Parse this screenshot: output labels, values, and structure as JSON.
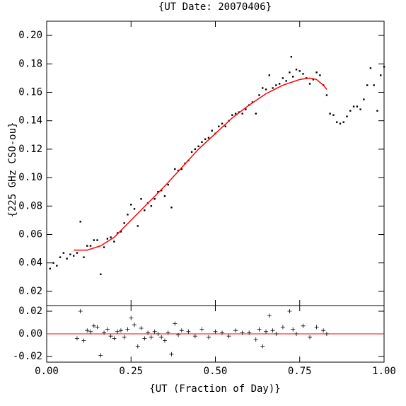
{
  "chart_data": [
    {
      "type": "scatter",
      "title": "{UT Date: 20070406}",
      "y_label": "{225 GHz CSO-ou}",
      "xlim": [
        0,
        1
      ],
      "ylim": [
        0.01,
        0.21
      ],
      "yticks": [
        0.02,
        0.04,
        0.06,
        0.08,
        {
          "value": 0.1,
          "label": "0.10"
        },
        0.12,
        0.14,
        0.16,
        0.18,
        {
          "value": 0.2,
          "label": "0.20"
        }
      ],
      "series": [
        {
          "marker": "dot",
          "color": "#000000",
          "x": [
            0.01,
            0.02,
            0.03,
            0.04,
            0.05,
            0.06,
            0.07,
            0.08,
            0.09,
            0.1,
            0.11,
            0.12,
            0.13,
            0.14,
            0.15,
            0.16,
            0.17,
            0.18,
            0.19,
            0.2,
            0.21,
            0.22,
            0.23,
            0.24,
            0.25,
            0.26,
            0.27,
            0.28,
            0.29,
            0.3,
            0.31,
            0.32,
            0.33,
            0.34,
            0.35,
            0.36,
            0.37,
            0.38,
            0.39,
            0.4,
            0.41,
            0.42,
            0.43,
            0.44,
            0.45,
            0.46,
            0.47,
            0.48,
            0.49,
            0.5,
            0.51,
            0.52,
            0.53,
            0.54,
            0.55,
            0.56,
            0.57,
            0.58,
            0.59,
            0.6,
            0.61,
            0.62,
            0.63,
            0.64,
            0.65,
            0.66,
            0.67,
            0.68,
            0.69,
            0.7,
            0.71,
            0.72,
            0.725,
            0.73,
            0.74,
            0.75,
            0.76,
            0.77,
            0.78,
            0.79,
            0.8,
            0.81,
            0.82,
            0.83,
            0.84,
            0.85,
            0.86,
            0.87,
            0.88,
            0.89,
            0.9,
            0.91,
            0.92,
            0.93,
            0.94,
            0.95,
            0.96,
            0.97,
            0.98,
            0.99,
            1.0
          ],
          "y": [
            0.036,
            0.04,
            0.038,
            0.044,
            0.047,
            0.043,
            0.046,
            0.045,
            0.047,
            0.069,
            0.044,
            0.052,
            0.052,
            0.056,
            0.056,
            0.032,
            0.051,
            0.057,
            0.058,
            0.055,
            0.061,
            0.062,
            0.068,
            0.074,
            0.081,
            0.078,
            0.066,
            0.085,
            0.077,
            0.082,
            0.08,
            0.085,
            0.09,
            0.091,
            0.087,
            0.095,
            0.079,
            0.106,
            0.105,
            0.106,
            0.11,
            0.112,
            0.118,
            0.12,
            0.122,
            0.125,
            0.127,
            0.128,
            0.133,
            0.131,
            0.136,
            0.138,
            0.136,
            0.14,
            0.144,
            0.145,
            0.146,
            0.145,
            0.148,
            0.151,
            0.153,
            0.145,
            0.158,
            0.163,
            0.162,
            0.172,
            0.163,
            0.165,
            0.166,
            0.17,
            0.168,
            0.174,
            0.185,
            0.171,
            0.176,
            0.175,
            0.173,
            0.17,
            0.166,
            0.169,
            0.174,
            0.172,
            0.165,
            0.158,
            0.145,
            0.144,
            0.139,
            0.138,
            0.139,
            0.143,
            0.147,
            0.15,
            0.15,
            0.148,
            0.155,
            0.165,
            0.177,
            0.165,
            0.147,
            0.172,
            0.178
          ]
        },
        {
          "marker": "line",
          "color": "#ff0000",
          "x": [
            0.08,
            0.12,
            0.16,
            0.2,
            0.25,
            0.3,
            0.35,
            0.4,
            0.45,
            0.5,
            0.55,
            0.6,
            0.65,
            0.7,
            0.75,
            0.78,
            0.8,
            0.82,
            0.83
          ],
          "y": [
            0.049,
            0.049,
            0.052,
            0.058,
            0.07,
            0.082,
            0.094,
            0.107,
            0.12,
            0.131,
            0.142,
            0.151,
            0.159,
            0.165,
            0.169,
            0.17,
            0.169,
            0.165,
            0.162
          ]
        }
      ]
    },
    {
      "type": "scatter",
      "x_label": "{UT (Fraction of Day)}",
      "xlim": [
        0,
        1
      ],
      "ylim": [
        -0.025,
        0.025
      ],
      "xticks": [
        {
          "value": 0,
          "label": "0.00"
        },
        0.25,
        {
          "value": 0.5,
          "label": "0.50"
        },
        0.75,
        {
          "value": 1,
          "label": "1.00"
        }
      ],
      "yticks": [
        -0.02,
        {
          "value": 0,
          "label": "0.00"
        },
        0.02
      ],
      "hline": 0,
      "hline_color": "#ff0000",
      "series": [
        {
          "marker": "plus",
          "color": "#000000",
          "x": [
            0.09,
            0.1,
            0.11,
            0.12,
            0.13,
            0.14,
            0.15,
            0.16,
            0.17,
            0.18,
            0.19,
            0.2,
            0.21,
            0.22,
            0.23,
            0.24,
            0.25,
            0.26,
            0.27,
            0.28,
            0.29,
            0.3,
            0.31,
            0.32,
            0.33,
            0.34,
            0.35,
            0.36,
            0.37,
            0.38,
            0.39,
            0.4,
            0.42,
            0.44,
            0.46,
            0.48,
            0.5,
            0.52,
            0.54,
            0.56,
            0.58,
            0.6,
            0.62,
            0.63,
            0.64,
            0.65,
            0.66,
            0.67,
            0.68,
            0.7,
            0.72,
            0.73,
            0.74,
            0.76,
            0.78,
            0.8,
            0.82,
            0.83
          ],
          "y": [
            -0.004,
            0.02,
            -0.006,
            0.003,
            0.002,
            0.007,
            0.006,
            -0.019,
            0.001,
            0.004,
            -0.002,
            -0.004,
            0.002,
            0.003,
            -0.003,
            0.004,
            0.014,
            0.008,
            -0.011,
            0.005,
            -0.004,
            0.001,
            -0.003,
            0.002,
            0.0,
            -0.003,
            -0.006,
            0.001,
            -0.018,
            0.009,
            -0.001,
            0.003,
            0.002,
            -0.002,
            0.004,
            -0.003,
            0.002,
            0.001,
            -0.002,
            0.003,
            0.001,
            0.001,
            -0.005,
            0.004,
            -0.011,
            0.002,
            0.016,
            0.003,
            0.0,
            0.006,
            0.02,
            0.004,
            0.0,
            0.007,
            -0.003,
            0.006,
            0.003,
            0.0
          ]
        }
      ]
    }
  ]
}
